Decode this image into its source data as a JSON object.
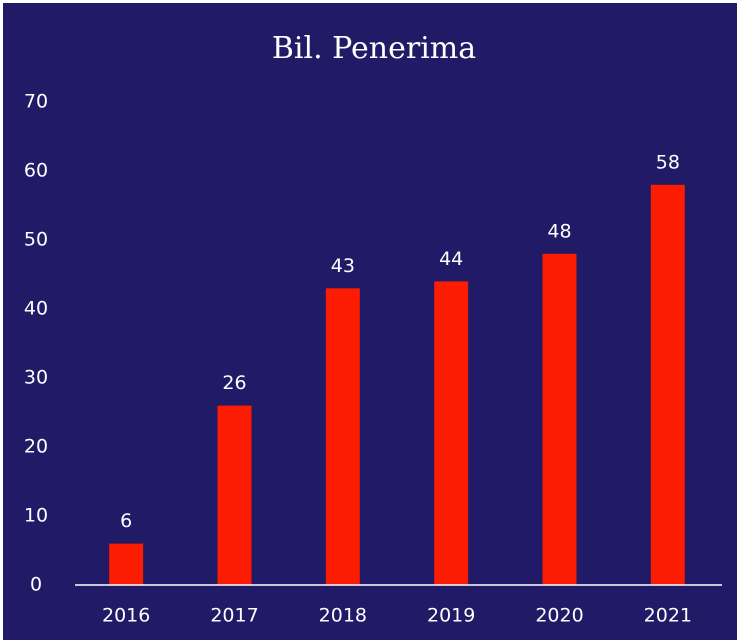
{
  "chart_data": {
    "type": "bar",
    "title": "Bil. Penerima",
    "categories": [
      "2016",
      "2017",
      "2018",
      "2019",
      "2020",
      "2021"
    ],
    "values": [
      6,
      26,
      43,
      44,
      48,
      58
    ],
    "color": "#fc1c02",
    "ylim": [
      0,
      70
    ],
    "yticks": [
      0,
      10,
      20,
      30,
      40,
      50,
      60,
      70
    ],
    "grid": false
  }
}
